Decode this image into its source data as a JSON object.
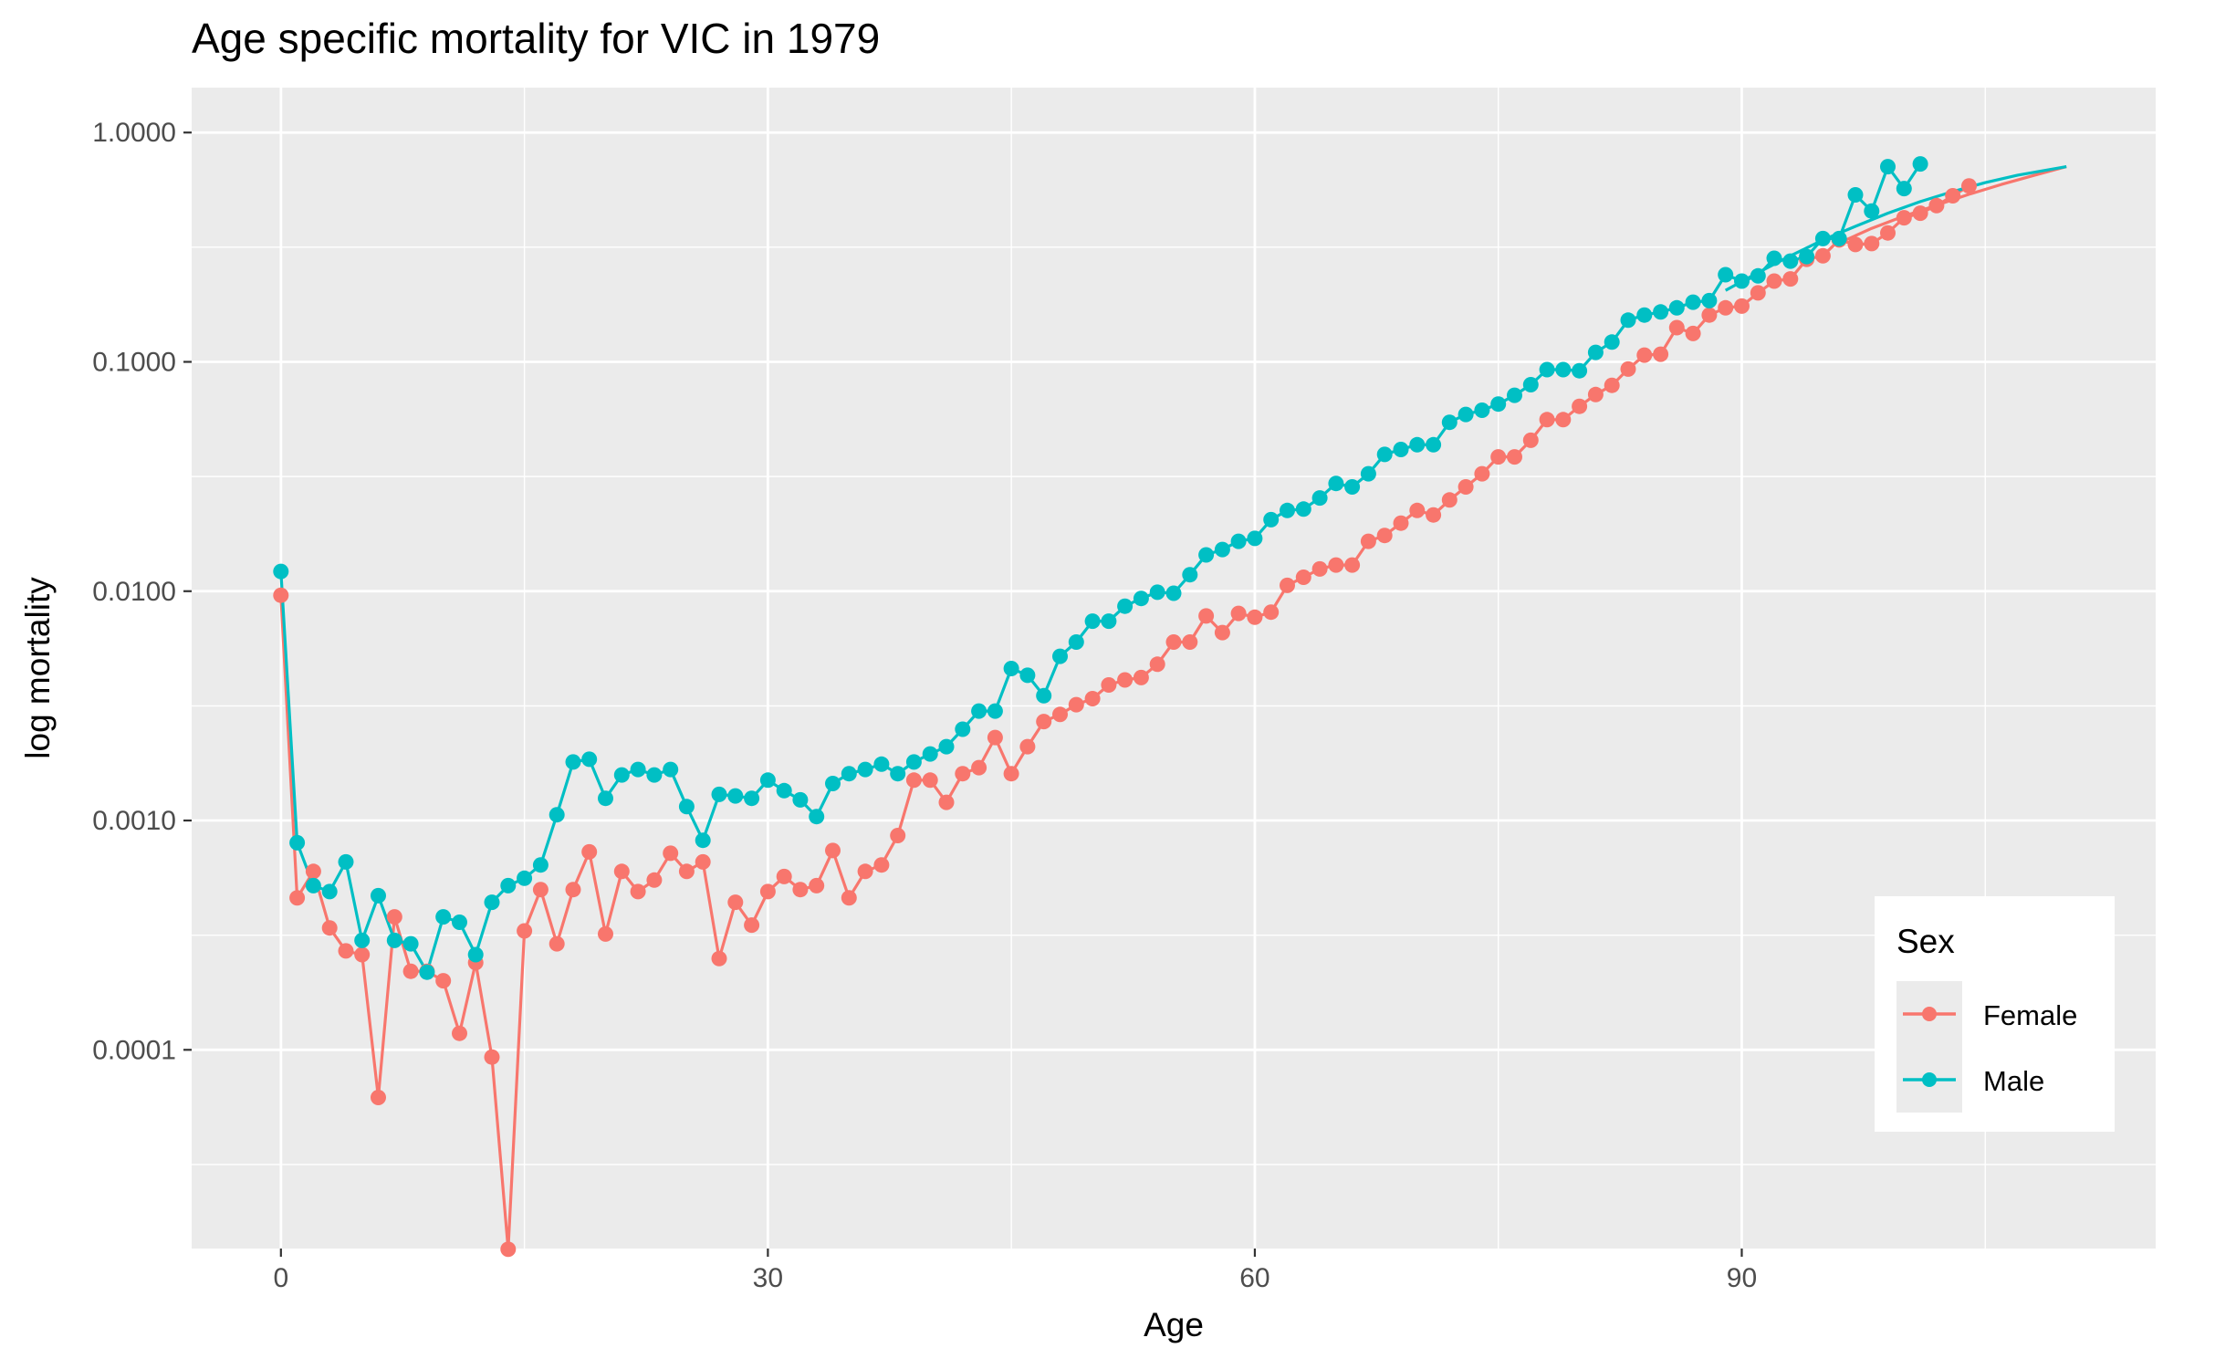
{
  "chart_data": {
    "type": "line",
    "title": "Age specific mortality for VIC in 1979",
    "xlabel": "Age",
    "ylabel": "log mortality",
    "x_scale": "linear",
    "y_scale": "log10",
    "xlim": [
      -5.5,
      115.5
    ],
    "ylim": [
      1.36e-05,
      1.57
    ],
    "x_ticks": [
      0,
      30,
      60,
      90
    ],
    "x_tick_labels": [
      "0",
      "30",
      "60",
      "90"
    ],
    "y_ticks": [
      0.0001,
      0.001,
      0.01,
      0.1,
      1
    ],
    "y_tick_labels": [
      "0.0001",
      "0.0010",
      "0.0100",
      "0.1000",
      "1.0000"
    ],
    "grid": true,
    "legend": {
      "title": "Sex",
      "position": "bottom-right inside",
      "entries": [
        "Female",
        "Male"
      ]
    },
    "colors": {
      "Female": "#F8766D",
      "Male": "#00BFC4",
      "panel": "#EBEBEB",
      "grid": "#FFFFFF"
    },
    "series": [
      {
        "name": "Female",
        "color": "#F8766D",
        "points": [
          [
            0,
            0.0096
          ],
          [
            1,
            0.00046
          ],
          [
            2,
            0.0006
          ],
          [
            3,
            0.00034
          ],
          [
            4,
            0.00027
          ],
          [
            5,
            0.00026
          ],
          [
            6,
            6.2e-05
          ],
          [
            7,
            0.00038
          ],
          [
            8,
            0.00022
          ],
          [
            9,
            0.00022
          ],
          [
            10,
            0.0002
          ],
          [
            11,
            0.000118
          ],
          [
            12,
            0.00024
          ],
          [
            13,
            9.3e-05
          ],
          [
            14,
            1.35e-05
          ],
          [
            15,
            0.00033
          ],
          [
            16,
            0.0005
          ],
          [
            17,
            0.00029
          ],
          [
            18,
            0.0005
          ],
          [
            19,
            0.00073
          ],
          [
            20,
            0.00032
          ],
          [
            21,
            0.0006
          ],
          [
            22,
            0.00049
          ],
          [
            23,
            0.00055
          ],
          [
            24,
            0.00072
          ],
          [
            25,
            0.0006
          ],
          [
            26,
            0.00066
          ],
          [
            27,
            0.00025
          ],
          [
            28,
            0.00044
          ],
          [
            29,
            0.00035
          ],
          [
            30,
            0.00049
          ],
          [
            31,
            0.00057
          ],
          [
            32,
            0.0005
          ],
          [
            33,
            0.00052
          ],
          [
            34,
            0.00074
          ],
          [
            35,
            0.00046
          ],
          [
            36,
            0.0006
          ],
          [
            37,
            0.00064
          ],
          [
            38,
            0.00086
          ],
          [
            39,
            0.0015
          ],
          [
            40,
            0.0015
          ],
          [
            41,
            0.0012
          ],
          [
            42,
            0.0016
          ],
          [
            43,
            0.0017
          ],
          [
            44,
            0.0023
          ],
          [
            45,
            0.0016
          ],
          [
            46,
            0.0021
          ],
          [
            47,
            0.0027
          ],
          [
            48,
            0.0029
          ],
          [
            49,
            0.0032
          ],
          [
            50,
            0.0034
          ],
          [
            51,
            0.0039
          ],
          [
            52,
            0.0041
          ],
          [
            53,
            0.0042
          ],
          [
            54,
            0.0048
          ],
          [
            55,
            0.006
          ],
          [
            56,
            0.006
          ],
          [
            57,
            0.0078
          ],
          [
            58,
            0.0066
          ],
          [
            59,
            0.008
          ],
          [
            60,
            0.0077
          ],
          [
            61,
            0.0081
          ],
          [
            62,
            0.0106
          ],
          [
            63,
            0.0115
          ],
          [
            64,
            0.0125
          ],
          [
            65,
            0.013
          ],
          [
            66,
            0.013
          ],
          [
            67,
            0.0165
          ],
          [
            68,
            0.0175
          ],
          [
            69,
            0.0198
          ],
          [
            70,
            0.0225
          ],
          [
            71,
            0.0215
          ],
          [
            72,
            0.025
          ],
          [
            73,
            0.0285
          ],
          [
            74,
            0.0325
          ],
          [
            75,
            0.0385
          ],
          [
            76,
            0.0385
          ],
          [
            77,
            0.0455
          ],
          [
            78,
            0.056
          ],
          [
            79,
            0.056
          ],
          [
            80,
            0.064
          ],
          [
            81,
            0.072
          ],
          [
            82,
            0.079
          ],
          [
            83,
            0.093
          ],
          [
            84,
            0.107
          ],
          [
            85,
            0.108
          ],
          [
            86,
            0.141
          ],
          [
            87,
            0.133
          ],
          [
            88,
            0.16
          ],
          [
            89,
            0.172
          ],
          [
            90,
            0.175
          ],
          [
            91,
            0.2
          ],
          [
            92,
            0.225
          ],
          [
            93,
            0.23
          ],
          [
            94,
            0.28
          ],
          [
            95,
            0.29
          ],
          [
            96,
            0.34
          ],
          [
            97,
            0.325
          ],
          [
            98,
            0.328
          ],
          [
            99,
            0.365
          ],
          [
            100,
            0.425
          ],
          [
            101,
            0.445
          ],
          [
            102,
            0.48
          ],
          [
            103,
            0.53
          ],
          [
            104,
            0.585
          ]
        ],
        "fitted": [
          [
            96,
            0.33
          ],
          [
            98,
            0.382
          ],
          [
            100,
            0.432
          ],
          [
            102,
            0.482
          ],
          [
            104,
            0.538
          ],
          [
            106,
            0.594
          ],
          [
            108,
            0.65
          ],
          [
            110,
            0.71
          ]
        ]
      },
      {
        "name": "Male",
        "color": "#00BFC4",
        "points": [
          [
            0,
            0.0122
          ],
          [
            1,
            0.0008
          ],
          [
            2,
            0.00052
          ],
          [
            3,
            0.00049
          ],
          [
            4,
            0.00066
          ],
          [
            5,
            0.0003
          ],
          [
            6,
            0.00047
          ],
          [
            7,
            0.0003
          ],
          [
            8,
            0.00029
          ],
          [
            9,
            0.000218
          ],
          [
            10,
            0.00038
          ],
          [
            11,
            0.00036
          ],
          [
            12,
            0.00026
          ],
          [
            13,
            0.00044
          ],
          [
            14,
            0.00052
          ],
          [
            15,
            0.00056
          ],
          [
            16,
            0.00064
          ],
          [
            17,
            0.00106
          ],
          [
            18,
            0.0018
          ],
          [
            19,
            0.00185
          ],
          [
            20,
            0.00125
          ],
          [
            21,
            0.00158
          ],
          [
            22,
            0.00167
          ],
          [
            23,
            0.00158
          ],
          [
            24,
            0.00167
          ],
          [
            25,
            0.00115
          ],
          [
            26,
            0.00082
          ],
          [
            27,
            0.0013
          ],
          [
            28,
            0.00128
          ],
          [
            29,
            0.00125
          ],
          [
            30,
            0.0015
          ],
          [
            31,
            0.00135
          ],
          [
            32,
            0.00123
          ],
          [
            33,
            0.00104
          ],
          [
            34,
            0.00145
          ],
          [
            35,
            0.0016
          ],
          [
            36,
            0.00167
          ],
          [
            37,
            0.00176
          ],
          [
            38,
            0.0016
          ],
          [
            39,
            0.0018
          ],
          [
            40,
            0.00195
          ],
          [
            41,
            0.0021
          ],
          [
            42,
            0.0025
          ],
          [
            43,
            0.003
          ],
          [
            44,
            0.003
          ],
          [
            45,
            0.0046
          ],
          [
            46,
            0.0043
          ],
          [
            47,
            0.0035
          ],
          [
            48,
            0.0052
          ],
          [
            49,
            0.006
          ],
          [
            50,
            0.0074
          ],
          [
            51,
            0.0074
          ],
          [
            52,
            0.0086
          ],
          [
            53,
            0.0093
          ],
          [
            54,
            0.0099
          ],
          [
            55,
            0.0098
          ],
          [
            56,
            0.0118
          ],
          [
            57,
            0.0144
          ],
          [
            58,
            0.0152
          ],
          [
            59,
            0.0165
          ],
          [
            60,
            0.017
          ],
          [
            61,
            0.0205
          ],
          [
            62,
            0.0225
          ],
          [
            63,
            0.0228
          ],
          [
            64,
            0.0255
          ],
          [
            65,
            0.0295
          ],
          [
            66,
            0.0285
          ],
          [
            67,
            0.0325
          ],
          [
            68,
            0.0395
          ],
          [
            69,
            0.0415
          ],
          [
            70,
            0.0435
          ],
          [
            71,
            0.0435
          ],
          [
            72,
            0.0545
          ],
          [
            73,
            0.059
          ],
          [
            74,
            0.0615
          ],
          [
            75,
            0.0655
          ],
          [
            76,
            0.0715
          ],
          [
            77,
            0.0795
          ],
          [
            78,
            0.0925
          ],
          [
            79,
            0.0925
          ],
          [
            80,
            0.0915
          ],
          [
            81,
            0.11
          ],
          [
            82,
            0.122
          ],
          [
            83,
            0.152
          ],
          [
            84,
            0.16
          ],
          [
            85,
            0.165
          ],
          [
            86,
            0.172
          ],
          [
            87,
            0.182
          ],
          [
            88,
            0.185
          ],
          [
            89,
            0.24
          ],
          [
            90,
            0.225
          ],
          [
            91,
            0.237
          ],
          [
            92,
            0.283
          ],
          [
            93,
            0.275
          ],
          [
            94,
            0.288
          ],
          [
            95,
            0.345
          ],
          [
            96,
            0.345
          ],
          [
            97,
            0.535
          ],
          [
            98,
            0.455
          ],
          [
            99,
            0.71
          ],
          [
            100,
            0.57
          ],
          [
            101,
            0.73
          ]
        ],
        "fitted": [
          [
            89,
            0.205
          ],
          [
            91,
            0.245
          ],
          [
            93,
            0.29
          ],
          [
            95,
            0.34
          ],
          [
            97,
            0.39
          ],
          [
            99,
            0.445
          ],
          [
            101,
            0.5
          ],
          [
            103,
            0.553
          ],
          [
            105,
            0.605
          ],
          [
            107,
            0.652
          ],
          [
            110,
            0.71
          ]
        ]
      }
    ]
  }
}
